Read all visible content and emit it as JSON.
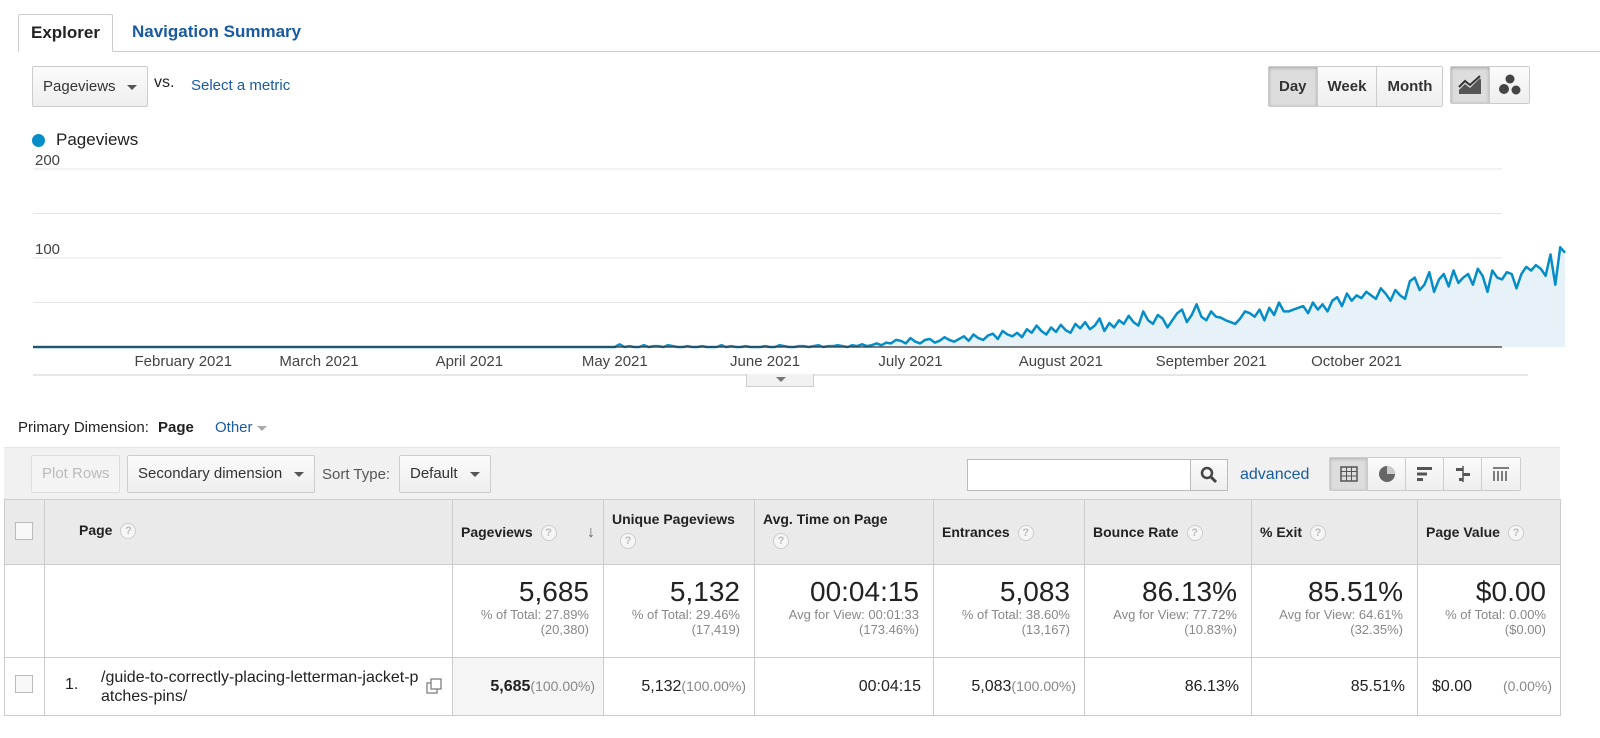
{
  "tabs": {
    "explorer": "Explorer",
    "nav_summary": "Navigation Summary"
  },
  "metric": {
    "selected": "Pageviews",
    "vs": "vs.",
    "select_metric": "Select a metric"
  },
  "period": {
    "day": "Day",
    "week": "Week",
    "month": "Month",
    "selected": "Day"
  },
  "legend": {
    "label": "Pageviews",
    "color": "#058dc7"
  },
  "chart_data": {
    "type": "area",
    "series": [
      {
        "name": "Pageviews",
        "color": "#058dc7"
      }
    ],
    "yticks": [
      100,
      200
    ],
    "ylim": [
      0,
      200
    ],
    "xlabels": [
      "February 2021",
      "March 2021",
      "April 2021",
      "May 2021",
      "June 2021",
      "July 2021",
      "August 2021",
      "September 2021",
      "October 2021"
    ],
    "x_start": "2021-01-01",
    "x_end": "2021-10-31",
    "values": [
      0,
      0,
      0,
      0,
      0,
      0,
      0,
      0,
      0,
      0,
      0,
      0,
      0,
      0,
      0,
      0,
      0,
      0,
      0,
      0,
      0,
      0,
      0,
      0,
      0,
      0,
      0,
      0,
      0,
      0,
      0,
      0,
      0,
      0,
      0,
      0,
      0,
      0,
      0,
      0,
      0,
      0,
      0,
      0,
      0,
      0,
      0,
      0,
      0,
      0,
      0,
      0,
      0,
      0,
      0,
      0,
      0,
      0,
      0,
      0,
      0,
      0,
      0,
      0,
      0,
      0,
      0,
      0,
      0,
      0,
      0,
      0,
      0,
      0,
      0,
      0,
      0,
      0,
      0,
      0,
      0,
      0,
      0,
      0,
      0,
      0,
      0,
      0,
      0,
      0,
      0,
      0,
      0,
      0,
      0,
      0,
      0,
      0,
      0,
      0,
      0,
      0,
      0,
      0,
      0,
      0,
      0,
      0,
      0,
      0,
      0,
      0,
      0,
      0,
      0,
      0,
      0,
      0,
      0,
      0,
      0,
      3,
      0,
      1,
      0,
      0,
      2,
      0,
      1,
      1,
      0,
      2,
      1,
      0,
      0,
      1,
      0,
      0,
      1,
      0,
      0,
      0,
      2,
      0,
      1,
      0,
      0,
      1,
      0,
      0,
      0,
      1,
      0,
      0,
      2,
      1,
      0,
      0,
      1,
      1,
      0,
      1,
      2,
      0,
      1,
      1,
      2,
      1,
      0,
      2,
      1,
      3,
      1,
      2,
      4,
      2,
      5,
      4,
      8,
      7,
      4,
      10,
      6,
      4,
      8,
      9,
      5,
      7,
      11,
      8,
      6,
      9,
      12,
      7,
      14,
      10,
      8,
      13,
      15,
      9,
      18,
      14,
      12,
      16,
      11,
      20,
      16,
      24,
      18,
      14,
      22,
      17,
      25,
      19,
      16,
      26,
      21,
      28,
      20,
      24,
      32,
      18,
      27,
      22,
      30,
      26,
      35,
      28,
      24,
      40,
      30,
      26,
      36,
      32,
      22,
      30,
      38,
      42,
      28,
      36,
      48,
      34,
      30,
      40,
      34,
      33,
      30,
      28,
      26,
      32,
      40,
      38,
      34,
      42,
      30,
      44,
      36,
      50,
      40,
      40,
      42,
      44,
      46,
      38,
      50,
      42,
      48,
      40,
      52,
      56,
      46,
      60,
      52,
      58,
      55,
      62,
      58,
      54,
      66,
      60,
      52,
      64,
      58,
      54,
      74,
      78,
      64,
      70,
      84,
      62,
      76,
      82,
      68,
      86,
      72,
      78,
      82,
      70,
      88,
      80,
      62,
      86,
      78,
      76,
      84,
      82,
      66,
      82,
      90,
      86,
      92,
      88,
      80,
      104,
      70,
      112,
      106
    ]
  },
  "dimension": {
    "label": "Primary Dimension:",
    "page": "Page",
    "other": "Other"
  },
  "toolbar": {
    "plot_rows": "Plot Rows",
    "secondary_dimension": "Secondary dimension",
    "sort_type_label": "Sort Type:",
    "sort_default": "Default",
    "search_placeholder": "",
    "advanced": "advanced"
  },
  "table": {
    "headers": {
      "page": "Page",
      "pageviews": "Pageviews",
      "unique_pageviews": "Unique Pageviews",
      "avg_time": "Avg. Time on Page",
      "entrances": "Entrances",
      "bounce_rate": "Bounce Rate",
      "exit": "% Exit",
      "page_value": "Page Value"
    },
    "totals": {
      "pageviews": {
        "value": "5,685",
        "line1": "% of Total: 27.89%",
        "line2": "(20,380)"
      },
      "unique_pageviews": {
        "value": "5,132",
        "line1": "% of Total: 29.46%",
        "line2": "(17,419)"
      },
      "avg_time": {
        "value": "00:04:15",
        "line1": "Avg for View: 00:01:33",
        "line2": "(173.46%)"
      },
      "entrances": {
        "value": "5,083",
        "line1": "% of Total: 38.60%",
        "line2": "(13,167)"
      },
      "bounce_rate": {
        "value": "86.13%",
        "line1": "Avg for View: 77.72%",
        "line2": "(10.83%)"
      },
      "exit": {
        "value": "85.51%",
        "line1": "Avg for View: 64.61%",
        "line2": "(32.35%)"
      },
      "page_value": {
        "value": "$0.00",
        "line1": "% of Total: 0.00%",
        "line2": "($0.00)"
      }
    },
    "rows": [
      {
        "index": "1.",
        "page": "/guide-to-correctly-placing-letterman-jacket-patches-pins/",
        "pageviews": "5,685",
        "pageviews_pct": "(100.00%)",
        "unique_pageviews": "5,132",
        "unique_pageviews_pct": "(100.00%)",
        "avg_time": "00:04:15",
        "entrances": "5,083",
        "entrances_pct": "(100.00%)",
        "bounce_rate": "86.13%",
        "exit": "85.51%",
        "page_value": "$0.00",
        "page_value_pct": "(0.00%)"
      }
    ]
  }
}
